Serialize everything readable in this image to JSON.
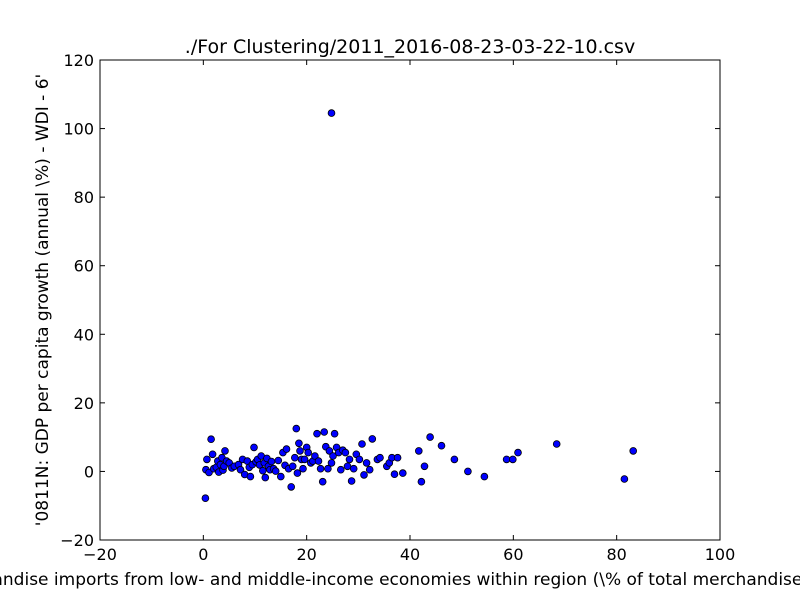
{
  "chart_data": {
    "type": "scatter",
    "title": "./For Clustering/2011_2016-08-23-03-22-10.csv",
    "xlabel": "Merchandise imports from low- and middle-income economies within region  (\\% of total merchandise imports)",
    "ylabel": "'0811N: GDP per capita growth  (annual \\%) - WDI - 6'",
    "xlim": [
      -20,
      100
    ],
    "ylim": [
      -20,
      120
    ],
    "xticks": [
      -20,
      0,
      20,
      40,
      60,
      80,
      100
    ],
    "yticks": [
      -20,
      0,
      20,
      40,
      60,
      80,
      100,
      120
    ],
    "xtick_labels": [
      "−20",
      "0",
      "20",
      "40",
      "60",
      "80",
      "100"
    ],
    "ytick_labels": [
      "−20",
      "0",
      "20",
      "40",
      "60",
      "80",
      "100",
      "120"
    ],
    "grid": false,
    "marker_color": "#0000ff",
    "points": [
      [
        24.8,
        104.5
      ],
      [
        0.4,
        -7.8
      ],
      [
        0.5,
        0.5
      ],
      [
        0.7,
        3.5
      ],
      [
        1.1,
        -0.3
      ],
      [
        1.5,
        9.4
      ],
      [
        1.8,
        5.0
      ],
      [
        2.0,
        0.8
      ],
      [
        2.5,
        1.2
      ],
      [
        2.8,
        3.0
      ],
      [
        3.0,
        -0.2
      ],
      [
        3.3,
        2.0
      ],
      [
        3.6,
        4.0
      ],
      [
        3.8,
        0.4
      ],
      [
        4.0,
        1.5
      ],
      [
        4.2,
        6.0
      ],
      [
        4.5,
        3.0
      ],
      [
        5.0,
        2.5
      ],
      [
        5.5,
        1.0
      ],
      [
        6.0,
        1.5
      ],
      [
        6.8,
        2.0
      ],
      [
        7.2,
        0.5
      ],
      [
        7.6,
        3.5
      ],
      [
        8.0,
        -0.9
      ],
      [
        8.5,
        3.0
      ],
      [
        8.9,
        1.2
      ],
      [
        9.1,
        -1.5
      ],
      [
        9.5,
        2.0
      ],
      [
        9.8,
        7.0
      ],
      [
        10.2,
        2.8
      ],
      [
        10.5,
        3.5
      ],
      [
        10.9,
        1.9
      ],
      [
        11.2,
        4.5
      ],
      [
        11.5,
        0.2
      ],
      [
        11.8,
        2.5
      ],
      [
        12.0,
        -1.8
      ],
      [
        12.3,
        3.8
      ],
      [
        12.6,
        1.5
      ],
      [
        12.9,
        0.5
      ],
      [
        13.2,
        2.9
      ],
      [
        13.6,
        0.8
      ],
      [
        14.0,
        0.1
      ],
      [
        14.5,
        3.2
      ],
      [
        15.0,
        -1.5
      ],
      [
        15.4,
        5.5
      ],
      [
        15.8,
        1.8
      ],
      [
        16.1,
        6.5
      ],
      [
        16.5,
        0.8
      ],
      [
        17.0,
        -4.5
      ],
      [
        17.3,
        1.5
      ],
      [
        17.7,
        4.0
      ],
      [
        18.0,
        12.5
      ],
      [
        18.2,
        -0.5
      ],
      [
        18.5,
        8.2
      ],
      [
        18.7,
        6.0
      ],
      [
        19.0,
        3.5
      ],
      [
        19.3,
        0.8
      ],
      [
        19.6,
        3.5
      ],
      [
        20.0,
        7.0
      ],
      [
        20.3,
        5.5
      ],
      [
        20.8,
        2.5
      ],
      [
        21.2,
        3.0
      ],
      [
        21.6,
        4.5
      ],
      [
        22.0,
        11.0
      ],
      [
        22.3,
        3.0
      ],
      [
        22.7,
        0.8
      ],
      [
        23.1,
        -3.0
      ],
      [
        23.4,
        11.5
      ],
      [
        23.7,
        7.2
      ],
      [
        24.1,
        0.8
      ],
      [
        24.4,
        6.0
      ],
      [
        24.8,
        2.5
      ],
      [
        25.1,
        4.5
      ],
      [
        25.4,
        11.0
      ],
      [
        25.8,
        7.0
      ],
      [
        26.2,
        5.5
      ],
      [
        26.6,
        0.5
      ],
      [
        27.0,
        6.2
      ],
      [
        27.5,
        5.5
      ],
      [
        27.9,
        1.5
      ],
      [
        28.3,
        3.5
      ],
      [
        28.7,
        -2.8
      ],
      [
        29.1,
        0.8
      ],
      [
        29.6,
        5.0
      ],
      [
        30.2,
        3.5
      ],
      [
        30.7,
        8.0
      ],
      [
        31.1,
        -1.0
      ],
      [
        31.6,
        2.5
      ],
      [
        32.2,
        0.5
      ],
      [
        32.7,
        9.5
      ],
      [
        33.7,
        3.5
      ],
      [
        34.2,
        4.0
      ],
      [
        35.5,
        1.5
      ],
      [
        36.0,
        2.5
      ],
      [
        36.5,
        4.0
      ],
      [
        37.0,
        -0.8
      ],
      [
        37.6,
        4.0
      ],
      [
        38.6,
        -0.5
      ],
      [
        41.7,
        6.0
      ],
      [
        42.2,
        -3.0
      ],
      [
        42.8,
        1.5
      ],
      [
        43.9,
        10.0
      ],
      [
        46.1,
        7.5
      ],
      [
        48.6,
        3.5
      ],
      [
        51.2,
        0.0
      ],
      [
        54.4,
        -1.5
      ],
      [
        58.7,
        3.5
      ],
      [
        59.9,
        3.5
      ],
      [
        60.9,
        5.5
      ],
      [
        68.4,
        8.0
      ],
      [
        81.5,
        -2.2
      ],
      [
        83.2,
        6.0
      ]
    ]
  }
}
